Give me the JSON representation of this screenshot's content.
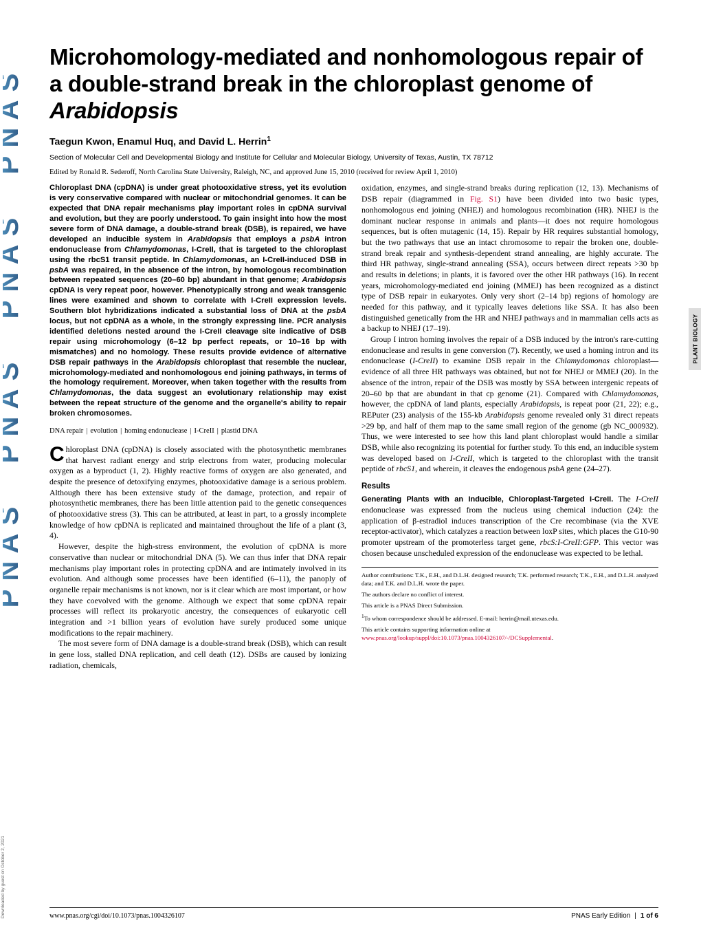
{
  "title_html": "Microhomology-mediated and nonhomologous repair of a double-strand break in the chloroplast genome of <em>Arabidopsis</em>",
  "authors": "Taegun Kwon, Enamul Huq, and David L. Herrin",
  "author_sup": "1",
  "affiliation": "Section of Molecular Cell and Developmental Biology and Institute for Cellular and Molecular Biology, University of Texas, Austin, TX 78712",
  "edited": "Edited by Ronald R. Sederoff, North Carolina State University, Raleigh, NC, and approved June 15, 2010 (received for review April 1, 2010)",
  "abstract_html": "Chloroplast DNA (cpDNA) is under great photooxidative stress, yet its evolution is very conservative compared with nuclear or mitochondrial genomes. It can be expected that DNA repair mechanisms play important roles in cpDNA survival and evolution, but they are poorly understood. To gain insight into how the most severe form of DNA damage, a double-strand break (DSB), is repaired, we have developed an inducible system in <em>Arabidopsis</em> that employs a <em>psbA</em> intron endonuclease from <em>Chlamydomonas</em>, I-CreII, that is targeted to the chloroplast using the rbcS1 transit peptide. In <em>Chlamydomonas</em>, an I-CreII-induced DSB in <em>psbA</em> was repaired, in the absence of the intron, by homologous recombination between repeated sequences (20–60 bp) abundant in that genome; <em>Arabidopsis</em> cpDNA is very repeat poor, however. Phenotypically strong and weak transgenic lines were examined and shown to correlate with I-CreII expression levels. Southern blot hybridizations indicated a substantial loss of DNA at the <em>psbA</em> locus, but not cpDNA as a whole, in the strongly expressing line. PCR analysis identified deletions nested around the I-CreII cleavage site indicative of DSB repair using microhomology (6–12 bp perfect repeats, or 10–16 bp with mismatches) and no homology. These results provide evidence of alternative DSB repair pathways in the <em>Arabidopsis</em> chloroplast that resemble the nuclear, microhomology-mediated and nonhomologous end joining pathways, in terms of the homology requirement. Moreover, when taken together with the results from <em>Chlamydomonas</em>, the data suggest an evolutionary relationship may exist between the repeat structure of the genome and the organelle's ability to repair broken chromosomes.",
  "keywords": [
    "DNA repair",
    "evolution",
    "homing endonuclease",
    "I-CreII",
    "plastid DNA"
  ],
  "col1_p1_html": "Chloroplast DNA (cpDNA) is closely associated with the photosynthetic membranes that harvest radiant energy and strip electrons from water, producing molecular oxygen as a byproduct (1, 2). Highly reactive forms of oxygen are also generated, and despite the presence of detoxifying enzymes, photooxidative damage is a serious problem. Although there has been extensive study of the damage, protection, and repair of photosynthetic membranes, there has been little attention paid to the genetic consequences of photooxidative stress (3). This can be attributed, at least in part, to a grossly incomplete knowledge of how cpDNA is replicated and maintained throughout the life of a plant (3, 4).",
  "col1_p2_html": "However, despite the high-stress environment, the evolution of cpDNA is more conservative than nuclear or mitochondrial DNA (5). We can thus infer that DNA repair mechanisms play important roles in protecting cpDNA and are intimately involved in its evolution. And although some processes have been identified (6–11), the panoply of organelle repair mechanisms is not known, nor is it clear which are most important, or how they have coevolved with the genome. Although we expect that some cpDNA repair processes will reflect its prokaryotic ancestry, the consequences of eukaryotic cell integration and &gt;1 billion years of evolution have surely produced some unique modifications to the repair machinery.",
  "col1_p3_html": "The most severe form of DNA damage is a double-strand break (DSB), which can result in gene loss, stalled DNA replication, and cell death (12). DSBs are caused by ionizing radiation, chemicals,",
  "col2_p1_html": "oxidation, enzymes, and single-strand breaks during replication (12, 13). Mechanisms of DSB repair (diagrammed in <span class=\"link\">Fig. S1</span>) have been divided into two basic types, nonhomologous end joining (NHEJ) and homologous recombination (HR). NHEJ is the dominant nuclear response in animals and plants—it does not require homologous sequences, but is often mutagenic (14, 15). Repair by HR requires substantial homology, but the two pathways that use an intact chromosome to repair the broken one, double-strand break repair and synthesis-dependent strand annealing, are highly accurate. The third HR pathway, single-strand annealing (SSA), occurs between direct repeats &gt;30 bp and results in deletions; in plants, it is favored over the other HR pathways (16). In recent years, microhomology-mediated end joining (MMEJ) has been recognized as a distinct type of DSB repair in eukaryotes. Only very short (2–14 bp) regions of homology are needed for this pathway, and it typically leaves deletions like SSA. It has also been distinguished genetically from the HR and NHEJ pathways and in mammalian cells acts as a backup to NHEJ (17–19).",
  "col2_p2_html": "Group I intron homing involves the repair of a DSB induced by the intron's rare-cutting endonuclease and results in gene conversion (7). Recently, we used a homing intron and its endonuclease (<em>I-CreII</em>) to examine DSB repair in the <em>Chlamydomonas</em> chloroplast—evidence of all three HR pathways was obtained, but not for NHEJ or MMEJ (20). In the absence of the intron, repair of the DSB was mostly by SSA between intergenic repeats of 20–60 bp that are abundant in that cp genome (21). Compared with <em>Chlamydomonas</em>, however, the cpDNA of land plants, especially <em>Arabidopsis</em>, is repeat poor (21, 22); e.g., REPuter (23) analysis of the 155-kb <em>Arabidopsis</em> genome revealed only 31 direct repeats &gt;29 bp, and half of them map to the same small region of the genome (gb NC_000932). Thus, we were interested to see how this land plant chloroplast would handle a similar DSB, while also recognizing its potential for further study. To this end, an inducible system was developed based on <em>I-CreII</em>, which is targeted to the chloroplast with the transit peptide of <em>rbcS1</em>, and wherein, it cleaves the endogenous <em>psbA</em> gene (24–27).",
  "results_heading": "Results",
  "results_sub": "Generating Plants with an Inducible, Chloroplast-Targeted I-CreII.",
  "col2_p3_html": "The <em>I-CreII</em> endonuclease was expressed from the nucleus using chemical induction (24): the application of β-estradiol induces transcription of the Cre recombinase (via the XVE receptor-activator), which catalyzes a reaction between loxP sites, which places the G10-90 promoter upstream of the promoterless target gene, <em>rbcS:I-CreII:GFP</em>. This vector was chosen because unscheduled expression of the endonuclease was expected to be lethal.",
  "fn_contrib": "Author contributions: T.K., E.H., and D.L.H. designed research; T.K. performed research; T.K., E.H., and D.L.H. analyzed data; and T.K. and D.L.H. wrote the paper.",
  "fn_conflict": "The authors declare no conflict of interest.",
  "fn_direct": "This article is a PNAS Direct Submission.",
  "fn_corr": "To whom correspondence should be addressed. E-mail: herrin@mail.utexas.edu.",
  "fn_si_pre": "This article contains supporting information online at ",
  "fn_si_link": "www.pnas.org/lookup/suppl/doi:10.1073/pnas.1004326107/-/DCSupplemental",
  "footer_left": "www.pnas.org/cgi/doi/10.1073/pnas.1004326107",
  "footer_right_a": "PNAS Early Edition",
  "footer_right_b": "1 of 6",
  "side_label": "PLANT BIOLOGY",
  "dl_note": "Downloaded by guest on October 2, 2021",
  "colors": {
    "link": "#cc0033",
    "sidebar": "#dddddd",
    "pnas_grad_start": "#5aa4d1",
    "pnas_grad_end": "#2a4f7a"
  }
}
